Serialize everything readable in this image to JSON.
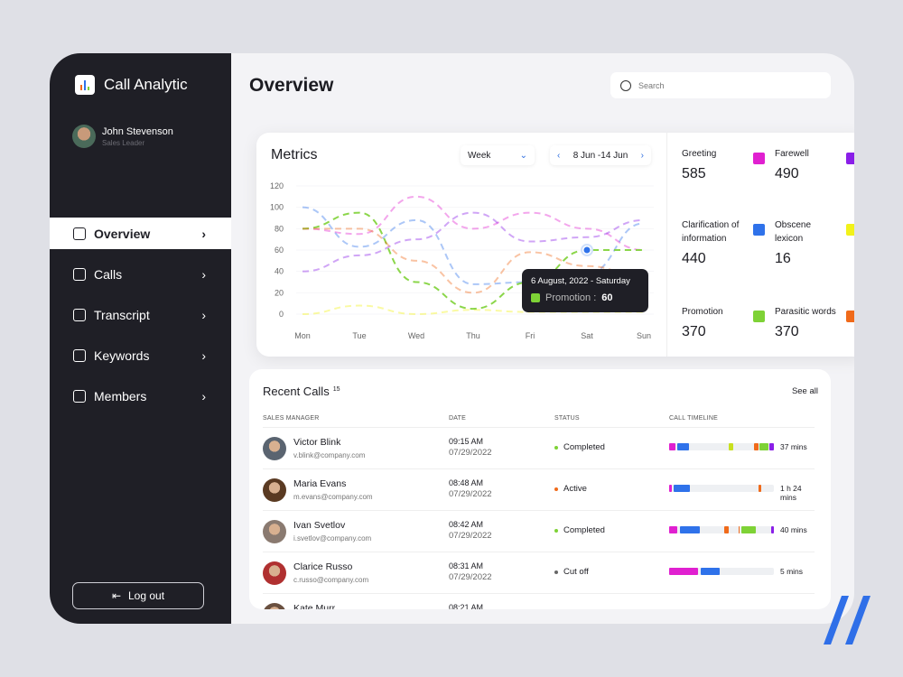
{
  "app": {
    "title": "Call Analytic",
    "user_name": "John Stevenson",
    "user_role": "Sales Leader"
  },
  "nav": [
    {
      "label": "Overview",
      "icon": "chart-icon"
    },
    {
      "label": "Calls",
      "icon": "phone-icon"
    },
    {
      "label": "Transcript",
      "icon": "document-icon"
    },
    {
      "label": "Keywords",
      "icon": "scan-icon"
    },
    {
      "label": "Members",
      "icon": "users-icon"
    }
  ],
  "logout": "Log out",
  "header": {
    "title": "Overview",
    "search_placeholder": "Search"
  },
  "metrics": {
    "title": "Metrics",
    "period": "Week",
    "range": "8 Jun -14 Jun",
    "tooltip": {
      "date": "6 August, 2022 - Saturday",
      "label": "Promotion :",
      "value": "60"
    },
    "stats": [
      {
        "name": "Greeting",
        "value": "585",
        "color": "#e020d0"
      },
      {
        "name": "Farewell",
        "value": "490",
        "color": "#8a1fe8"
      },
      {
        "name": "Clarification of information",
        "value": "440",
        "color": "#2f72ea"
      },
      {
        "name": "Obscene lexicon",
        "value": "16",
        "color": "#f2f21a"
      },
      {
        "name": "Promotion",
        "value": "370",
        "color": "#7ed236"
      },
      {
        "name": "Parasitic words",
        "value": "370",
        "color": "#f06a1a"
      }
    ]
  },
  "chart_data": {
    "type": "line",
    "categories": [
      "Mon",
      "Tue",
      "Wed",
      "Thu",
      "Fri",
      "Sat",
      "Sun"
    ],
    "ylim": [
      0,
      120
    ],
    "yticks": [
      0,
      20,
      40,
      60,
      80,
      100,
      120
    ],
    "series": [
      {
        "name": "Greeting",
        "color": "#e020d0",
        "values": [
          80,
          75,
          110,
          80,
          95,
          80,
          60
        ]
      },
      {
        "name": "Farewell",
        "color": "#8a1fe8",
        "values": [
          40,
          55,
          70,
          95,
          68,
          72,
          88
        ]
      },
      {
        "name": "Clarification of information",
        "color": "#2f72ea",
        "values": [
          100,
          63,
          88,
          28,
          30,
          38,
          85
        ]
      },
      {
        "name": "Obscene lexicon",
        "color": "#f2f21a",
        "values": [
          0,
          8,
          0,
          4,
          2,
          2,
          2
        ]
      },
      {
        "name": "Promotion",
        "color": "#7ed236",
        "values": [
          80,
          95,
          30,
          5,
          30,
          60,
          60
        ]
      },
      {
        "name": "Parasitic words",
        "color": "#f06a1a",
        "values": [
          80,
          80,
          50,
          20,
          58,
          45,
          35
        ]
      }
    ],
    "highlight": {
      "series": "Promotion",
      "category": "Sat",
      "value": 60
    }
  },
  "recent": {
    "title": "Recent Calls",
    "count": "15",
    "see_all": "See all",
    "columns": [
      "SALES MANAGER",
      "DATE",
      "STATUS",
      "CALL TIMELINE"
    ],
    "rows": [
      {
        "name": "Victor Blink",
        "email": "v.blink@company.com",
        "time": "09:15 AM",
        "date": "07/29/2022",
        "status": "Completed",
        "status_color": "#7ed236",
        "duration": "37 mins",
        "avatar": "#5a6470",
        "segments": [
          [
            0,
            0.06,
            "#e020d0"
          ],
          [
            0.08,
            0.19,
            "#2f72ea"
          ],
          [
            0.57,
            0.61,
            "#c8e020"
          ],
          [
            0.81,
            0.85,
            "#f06a1a"
          ],
          [
            0.86,
            0.95,
            "#7ed236"
          ],
          [
            0.96,
            1,
            "#8a1fe8"
          ]
        ]
      },
      {
        "name": "Maria Evans",
        "email": "m.evans@company.com",
        "time": "08:48 AM",
        "date": "07/29/2022",
        "status": "Active",
        "status_color": "#f06a1a",
        "duration": "1 h 24 mins",
        "avatar": "#5a3a22",
        "segments": [
          [
            0,
            0.03,
            "#e020d0"
          ],
          [
            0.04,
            0.2,
            "#2f72ea"
          ],
          [
            0.85,
            0.88,
            "#f06a1a"
          ]
        ]
      },
      {
        "name": "Ivan Svetlov",
        "email": "i.svetlov@company.com",
        "time": "08:42 AM",
        "date": "07/29/2022",
        "status": "Completed",
        "status_color": "#7ed236",
        "duration": "40 mins",
        "avatar": "#8a7a70",
        "segments": [
          [
            0,
            0.08,
            "#e020d0"
          ],
          [
            0.1,
            0.29,
            "#2f72ea"
          ],
          [
            0.53,
            0.57,
            "#f06a1a"
          ],
          [
            0.66,
            0.67,
            "#f06a1a"
          ],
          [
            0.69,
            0.83,
            "#7ed236"
          ],
          [
            0.97,
            1,
            "#8a1fe8"
          ]
        ]
      },
      {
        "name": "Clarice Russo",
        "email": "c.russo@company.com",
        "time": "08:31 AM",
        "date": "07/29/2022",
        "status": "Cut off",
        "status_color": "#666",
        "duration": "5 mins",
        "avatar": "#b03030",
        "segments": [
          [
            0,
            0.28,
            "#e020d0"
          ],
          [
            0.3,
            0.48,
            "#2f72ea"
          ]
        ]
      },
      {
        "name": "Kate Murr",
        "email": "",
        "time": "08:21 AM",
        "date": "",
        "status": "",
        "status_color": "#666",
        "duration": "",
        "avatar": "#6a5040",
        "segments": []
      }
    ]
  }
}
